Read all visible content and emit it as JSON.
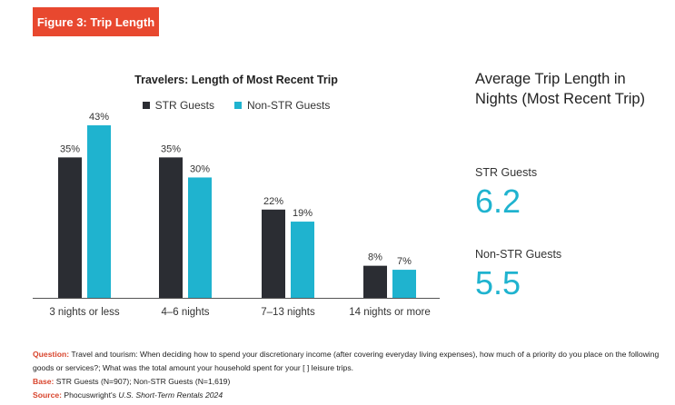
{
  "figure_label": "Figure 3: Trip Length",
  "chart_data": {
    "type": "bar",
    "title": "Travelers: Length of Most Recent Trip",
    "categories": [
      "3 nights or less",
      "4–6 nights",
      "7–13 nights",
      "14 nights or more"
    ],
    "series": [
      {
        "name": "STR Guests",
        "values": [
          35,
          35,
          22,
          8
        ],
        "labels": [
          "35%",
          "35%",
          "22%",
          "8%"
        ],
        "color": "#2b2d33"
      },
      {
        "name": "Non-STR Guests",
        "values": [
          43,
          30,
          19,
          7
        ],
        "labels": [
          "43%",
          "30%",
          "19%",
          "7%"
        ],
        "color": "#1fb3cf"
      }
    ],
    "ylim": [
      0,
      43
    ],
    "legend_position": "top",
    "grid": false
  },
  "side_panel": {
    "title": "Average Trip Length in Nights (Most Recent Trip)",
    "stats": [
      {
        "label": "STR Guests",
        "value": "6.2"
      },
      {
        "label": "Non-STR Guests",
        "value": "5.5"
      }
    ]
  },
  "footer": {
    "question_label": "Question:",
    "question_text": "Travel and tourism: When deciding how to spend your discretionary income (after covering everyday living expenses), how much of a priority do you place on the following goods or services?; What was the total amount your household spent for your [ ] leisure trips.",
    "base_label": "Base:",
    "base_text": "STR Guests (N=907); Non-STR Guests (N=1,619)",
    "source_label": "Source:",
    "source_text_prefix": "Phocuswright's ",
    "source_text_italic": "U.S. Short-Term Rentals 2024"
  },
  "colors": {
    "accent": "#e8482f",
    "str": "#2b2d33",
    "non_str": "#1fb3cf"
  }
}
